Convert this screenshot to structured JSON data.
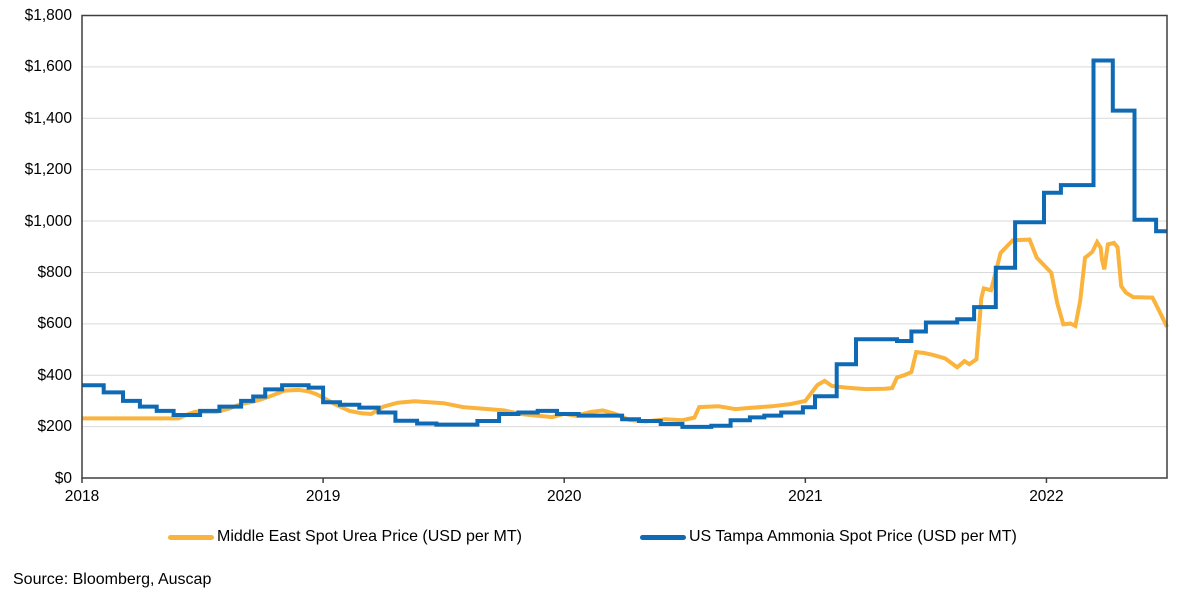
{
  "source_note": "Source: Bloomberg, Auscap",
  "chart_data": {
    "type": "line",
    "title": "",
    "xlabel": "",
    "ylabel": "",
    "xlim": [
      2018,
      2022.5
    ],
    "ylim": [
      0,
      1800
    ],
    "y_tick_interval": 200,
    "y_tick_labels": [
      "$0",
      "$200",
      "$400",
      "$600",
      "$800",
      "$1,000",
      "$1,200",
      "$1,400",
      "$1,600",
      "$1,800"
    ],
    "x_tick_positions": [
      2018,
      2019,
      2020,
      2021,
      2022
    ],
    "x_tick_labels": [
      "2018",
      "2019",
      "2020",
      "2021",
      "2022"
    ],
    "grid": "horizontal",
    "legend_position": "bottom",
    "axis_color": "#3F3F3F",
    "gridline_color": "#D9D9D9",
    "series": [
      {
        "name": "Middle East Spot Urea Price (USD per MT)",
        "color": "#FAB33C",
        "interpolation": "linear",
        "points": [
          [
            2018.0,
            232
          ],
          [
            2018.4,
            232
          ],
          [
            2018.44,
            248
          ],
          [
            2018.47,
            258
          ],
          [
            2018.56,
            258
          ],
          [
            2018.61,
            270
          ],
          [
            2018.66,
            288
          ],
          [
            2018.7,
            295
          ],
          [
            2018.74,
            305
          ],
          [
            2018.78,
            318
          ],
          [
            2018.84,
            340
          ],
          [
            2018.9,
            343
          ],
          [
            2018.94,
            337
          ],
          [
            2018.97,
            327
          ],
          [
            2019.0,
            313
          ],
          [
            2019.05,
            287
          ],
          [
            2019.11,
            261
          ],
          [
            2019.16,
            252
          ],
          [
            2019.2,
            249
          ],
          [
            2019.25,
            278
          ],
          [
            2019.31,
            293
          ],
          [
            2019.38,
            299
          ],
          [
            2019.44,
            295
          ],
          [
            2019.5,
            291
          ],
          [
            2019.58,
            276
          ],
          [
            2019.66,
            270
          ],
          [
            2019.75,
            263
          ],
          [
            2019.83,
            248
          ],
          [
            2019.89,
            242
          ],
          [
            2019.95,
            237
          ],
          [
            2020.0,
            250
          ],
          [
            2020.05,
            242
          ],
          [
            2020.11,
            257
          ],
          [
            2020.16,
            263
          ],
          [
            2020.21,
            250
          ],
          [
            2020.27,
            226
          ],
          [
            2020.34,
            220
          ],
          [
            2020.42,
            229
          ],
          [
            2020.49,
            225
          ],
          [
            2020.54,
            235
          ],
          [
            2020.56,
            276
          ],
          [
            2020.64,
            279
          ],
          [
            2020.71,
            268
          ],
          [
            2020.77,
            273
          ],
          [
            2020.86,
            279
          ],
          [
            2020.94,
            288
          ],
          [
            2021.0,
            300
          ],
          [
            2021.05,
            362
          ],
          [
            2021.08,
            378
          ],
          [
            2021.11,
            358
          ],
          [
            2021.17,
            352
          ],
          [
            2021.25,
            346
          ],
          [
            2021.33,
            347
          ],
          [
            2021.36,
            350
          ],
          [
            2021.38,
            391
          ],
          [
            2021.41,
            400
          ],
          [
            2021.44,
            412
          ],
          [
            2021.46,
            490
          ],
          [
            2021.49,
            487
          ],
          [
            2021.53,
            479
          ],
          [
            2021.58,
            465
          ],
          [
            2021.63,
            431
          ],
          [
            2021.66,
            455
          ],
          [
            2021.68,
            443
          ],
          [
            2021.71,
            462
          ],
          [
            2021.73,
            700
          ],
          [
            2021.74,
            738
          ],
          [
            2021.77,
            731
          ],
          [
            2021.81,
            876
          ],
          [
            2021.86,
            925
          ],
          [
            2021.93,
            928
          ],
          [
            2021.96,
            857
          ],
          [
            2022.02,
            799
          ],
          [
            2022.045,
            680
          ],
          [
            2022.07,
            598
          ],
          [
            2022.1,
            601
          ],
          [
            2022.12,
            592
          ],
          [
            2022.14,
            690
          ],
          [
            2022.16,
            857
          ],
          [
            2022.19,
            880
          ],
          [
            2022.21,
            918
          ],
          [
            2022.225,
            896
          ],
          [
            2022.23,
            851
          ],
          [
            2022.24,
            812
          ],
          [
            2022.255,
            909
          ],
          [
            2022.28,
            915
          ],
          [
            2022.295,
            898
          ],
          [
            2022.31,
            747
          ],
          [
            2022.33,
            721
          ],
          [
            2022.36,
            704
          ],
          [
            2022.44,
            702
          ],
          [
            2022.465,
            655
          ],
          [
            2022.5,
            588
          ]
        ]
      },
      {
        "name": "US Tampa Ammonia Spot Price (USD per MT)",
        "color": "#0E6AB4",
        "interpolation": "step",
        "points": [
          [
            2018.0,
            361
          ],
          [
            2018.09,
            333
          ],
          [
            2018.17,
            300
          ],
          [
            2018.24,
            278
          ],
          [
            2018.31,
            261
          ],
          [
            2018.38,
            245
          ],
          [
            2018.49,
            261
          ],
          [
            2018.57,
            278
          ],
          [
            2018.66,
            300
          ],
          [
            2018.71,
            317
          ],
          [
            2018.76,
            345
          ],
          [
            2018.83,
            361
          ],
          [
            2018.94,
            352
          ],
          [
            2019.0,
            295
          ],
          [
            2019.07,
            285
          ],
          [
            2019.15,
            274
          ],
          [
            2019.23,
            255
          ],
          [
            2019.3,
            223
          ],
          [
            2019.39,
            212
          ],
          [
            2019.47,
            208
          ],
          [
            2019.64,
            222
          ],
          [
            2019.73,
            249
          ],
          [
            2019.81,
            255
          ],
          [
            2019.89,
            261
          ],
          [
            2019.97,
            249
          ],
          [
            2020.06,
            243
          ],
          [
            2020.24,
            229
          ],
          [
            2020.31,
            222
          ],
          [
            2020.4,
            210
          ],
          [
            2020.49,
            199
          ],
          [
            2020.61,
            203
          ],
          [
            2020.69,
            225
          ],
          [
            2020.77,
            236
          ],
          [
            2020.83,
            243
          ],
          [
            2020.9,
            255
          ],
          [
            2020.99,
            275
          ],
          [
            2021.04,
            318
          ],
          [
            2021.13,
            443
          ],
          [
            2021.21,
            540
          ],
          [
            2021.38,
            533
          ],
          [
            2021.44,
            570
          ],
          [
            2021.5,
            605
          ],
          [
            2021.63,
            618
          ],
          [
            2021.7,
            665
          ],
          [
            2021.79,
            818
          ],
          [
            2021.87,
            995
          ],
          [
            2021.99,
            1110
          ],
          [
            2022.06,
            1140
          ],
          [
            2022.195,
            1625
          ],
          [
            2022.275,
            1430
          ],
          [
            2022.365,
            1005
          ],
          [
            2022.455,
            960
          ],
          [
            2022.5,
            960
          ]
        ]
      }
    ]
  }
}
